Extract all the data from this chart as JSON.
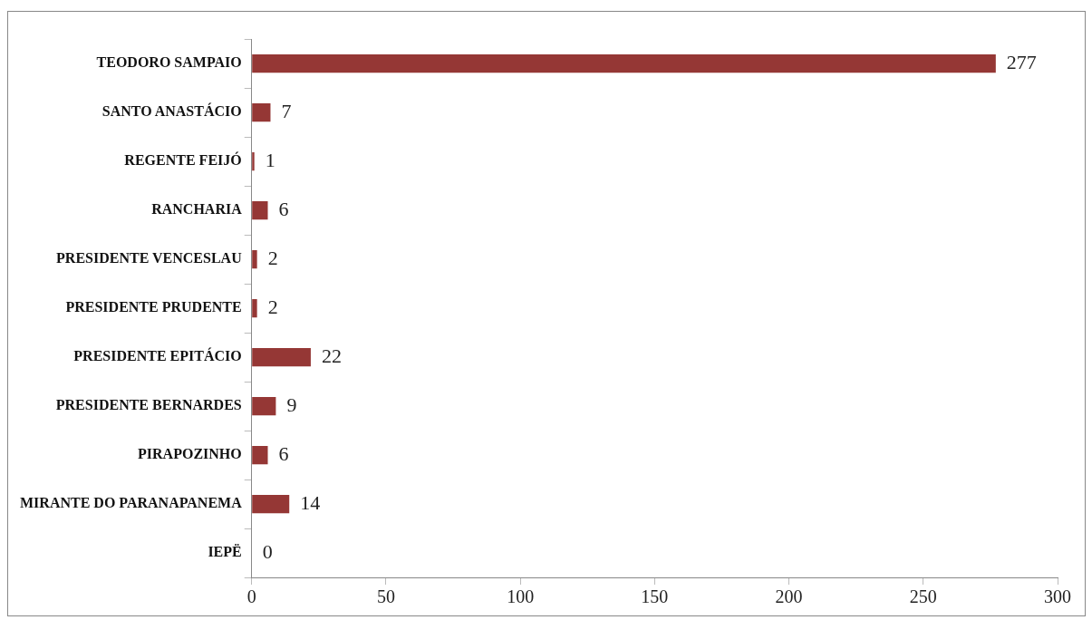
{
  "chart_data": {
    "type": "bar",
    "orientation": "horizontal",
    "categories": [
      "TEODORO SAMPAIO",
      "SANTO ANASTÁCIO",
      "REGENTE FEIJÓ",
      "RANCHARIA",
      "PRESIDENTE VENCESLAU",
      "PRESIDENTE PRUDENTE",
      "PRESIDENTE EPITÁCIO",
      "PRESIDENTE BERNARDES",
      "PIRAPOZINHO",
      "MIRANTE DO PARANAPANEMA",
      "IEPË"
    ],
    "values": [
      277,
      7,
      1,
      6,
      2,
      2,
      22,
      9,
      6,
      14,
      0
    ],
    "color": "#953735",
    "xlim": [
      0,
      300
    ],
    "xticks": [
      0,
      50,
      100,
      150,
      200,
      250,
      300
    ],
    "data_labels": true,
    "grid": false,
    "legend": false
  }
}
